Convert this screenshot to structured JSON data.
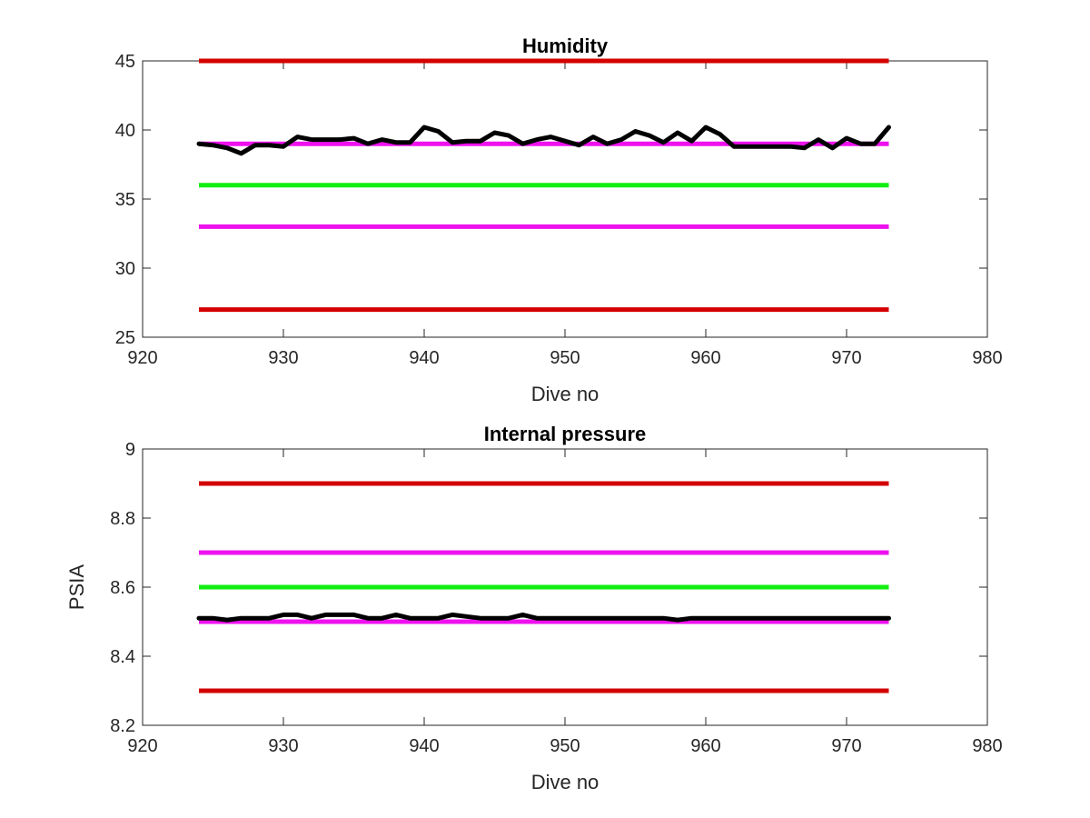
{
  "chart_data": [
    {
      "type": "line",
      "title": "Humidity",
      "xlabel": "Dive no",
      "ylabel": "",
      "xlim": [
        920,
        980
      ],
      "ylim": [
        25,
        45
      ],
      "xticks": [
        "920",
        "930",
        "940",
        "950",
        "960",
        "970",
        "980"
      ],
      "yticks": [
        "25",
        "30",
        "35",
        "40",
        "45"
      ],
      "grid": false,
      "reference_lines": [
        {
          "y": 45,
          "x_range": [
            924,
            973
          ],
          "color": "#d40000"
        },
        {
          "y": 39,
          "x_range": [
            924,
            973
          ],
          "color": "#ee11ee"
        },
        {
          "y": 36,
          "x_range": [
            924,
            973
          ],
          "color": "#11ee11"
        },
        {
          "y": 33,
          "x_range": [
            924,
            973
          ],
          "color": "#ee11ee"
        },
        {
          "y": 27,
          "x_range": [
            924,
            973
          ],
          "color": "#d40000"
        }
      ],
      "series": [
        {
          "color": "#000000",
          "x": [
            924,
            925,
            926,
            927,
            928,
            929,
            930,
            931,
            932,
            933,
            934,
            935,
            936,
            937,
            938,
            939,
            940,
            941,
            942,
            943,
            944,
            945,
            946,
            947,
            948,
            949,
            950,
            951,
            952,
            953,
            954,
            955,
            956,
            957,
            958,
            959,
            960,
            961,
            962,
            963,
            964,
            965,
            966,
            967,
            968,
            969,
            970,
            971,
            972,
            973
          ],
          "values": [
            39.0,
            38.9,
            38.7,
            38.3,
            38.9,
            38.9,
            38.8,
            39.5,
            39.3,
            39.3,
            39.3,
            39.4,
            39.0,
            39.3,
            39.1,
            39.1,
            40.2,
            39.9,
            39.1,
            39.2,
            39.2,
            39.8,
            39.6,
            39.0,
            39.3,
            39.5,
            39.2,
            38.9,
            39.5,
            39.0,
            39.3,
            39.9,
            39.6,
            39.1,
            39.8,
            39.2,
            40.2,
            39.7,
            38.8,
            38.8,
            38.8,
            38.8,
            38.8,
            38.7,
            39.3,
            38.7,
            39.4,
            39.0,
            39.0,
            40.2
          ]
        }
      ]
    },
    {
      "type": "line",
      "title": "Internal pressure",
      "xlabel": "Dive no",
      "ylabel": "PSIA",
      "xlim": [
        920,
        980
      ],
      "ylim": [
        8.2,
        9.0
      ],
      "xticks": [
        "920",
        "930",
        "940",
        "950",
        "960",
        "970",
        "980"
      ],
      "yticks": [
        "8.2",
        "8.4",
        "8.6",
        "8.8",
        "9"
      ],
      "grid": false,
      "reference_lines": [
        {
          "y": 8.9,
          "x_range": [
            924,
            973
          ],
          "color": "#d40000"
        },
        {
          "y": 8.7,
          "x_range": [
            924,
            973
          ],
          "color": "#ee11ee"
        },
        {
          "y": 8.6,
          "x_range": [
            924,
            973
          ],
          "color": "#11ee11"
        },
        {
          "y": 8.5,
          "x_range": [
            924,
            973
          ],
          "color": "#ee11ee"
        },
        {
          "y": 8.3,
          "x_range": [
            924,
            973
          ],
          "color": "#d40000"
        }
      ],
      "series": [
        {
          "color": "#000000",
          "x": [
            924,
            925,
            926,
            927,
            928,
            929,
            930,
            931,
            932,
            933,
            934,
            935,
            936,
            937,
            938,
            939,
            940,
            941,
            942,
            943,
            944,
            945,
            946,
            947,
            948,
            949,
            950,
            951,
            952,
            953,
            954,
            955,
            956,
            957,
            958,
            959,
            960,
            961,
            962,
            963,
            964,
            965,
            966,
            967,
            968,
            969,
            970,
            971,
            972,
            973
          ],
          "values": [
            8.51,
            8.51,
            8.505,
            8.51,
            8.51,
            8.51,
            8.52,
            8.52,
            8.51,
            8.52,
            8.52,
            8.52,
            8.51,
            8.51,
            8.52,
            8.51,
            8.51,
            8.51,
            8.52,
            8.515,
            8.51,
            8.51,
            8.51,
            8.52,
            8.51,
            8.51,
            8.51,
            8.51,
            8.51,
            8.51,
            8.51,
            8.51,
            8.51,
            8.51,
            8.505,
            8.51,
            8.51,
            8.51,
            8.51,
            8.51,
            8.51,
            8.51,
            8.51,
            8.51,
            8.51,
            8.51,
            8.51,
            8.51,
            8.51,
            8.51
          ]
        }
      ]
    }
  ]
}
